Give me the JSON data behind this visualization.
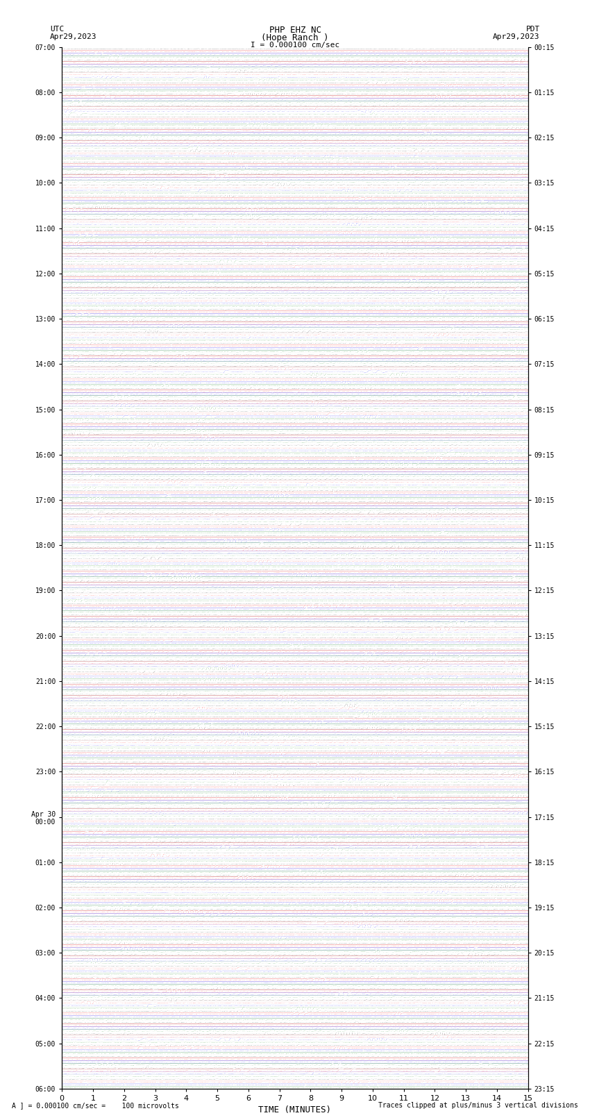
{
  "title_line1": "PHP EHZ NC",
  "title_line2": "(Hope Ranch )",
  "title_line3": "I = 0.000100 cm/sec",
  "left_label_line1": "UTC",
  "left_label_line2": "Apr29,2023",
  "right_label_line1": "PDT",
  "right_label_line2": "Apr29,2023",
  "xlabel": "TIME (MINUTES)",
  "footer_left": "A ] = 0.000100 cm/sec =    100 microvolts",
  "footer_right": "Traces clipped at plus/minus 3 vertical divisions",
  "utc_times": [
    "07:00",
    "",
    "",
    "",
    "08:00",
    "",
    "",
    "",
    "09:00",
    "",
    "",
    "",
    "10:00",
    "",
    "",
    "",
    "11:00",
    "",
    "",
    "",
    "12:00",
    "",
    "",
    "",
    "13:00",
    "",
    "",
    "",
    "14:00",
    "",
    "",
    "",
    "15:00",
    "",
    "",
    "",
    "16:00",
    "",
    "",
    "",
    "17:00",
    "",
    "",
    "",
    "18:00",
    "",
    "",
    "",
    "19:00",
    "",
    "",
    "",
    "20:00",
    "",
    "",
    "",
    "21:00",
    "",
    "",
    "",
    "22:00",
    "",
    "",
    "",
    "23:00",
    "",
    "",
    "",
    "Apr 30\n00:00",
    "",
    "",
    "",
    "01:00",
    "",
    "",
    "",
    "02:00",
    "",
    "",
    "",
    "03:00",
    "",
    "",
    "",
    "04:00",
    "",
    "",
    "",
    "05:00",
    "",
    "",
    "",
    "06:00"
  ],
  "pdt_times": [
    "00:15",
    "",
    "",
    "",
    "01:15",
    "",
    "",
    "",
    "02:15",
    "",
    "",
    "",
    "03:15",
    "",
    "",
    "",
    "04:15",
    "",
    "",
    "",
    "05:15",
    "",
    "",
    "",
    "06:15",
    "",
    "",
    "",
    "07:15",
    "",
    "",
    "",
    "08:15",
    "",
    "",
    "",
    "09:15",
    "",
    "",
    "",
    "10:15",
    "",
    "",
    "",
    "11:15",
    "",
    "",
    "",
    "12:15",
    "",
    "",
    "",
    "13:15",
    "",
    "",
    "",
    "14:15",
    "",
    "",
    "",
    "15:15",
    "",
    "",
    "",
    "16:15",
    "",
    "",
    "",
    "17:15",
    "",
    "",
    "",
    "18:15",
    "",
    "",
    "",
    "19:15",
    "",
    "",
    "",
    "20:15",
    "",
    "",
    "",
    "21:15",
    "",
    "",
    "",
    "22:15",
    "",
    "",
    "",
    "23:15"
  ],
  "n_rows": 92,
  "n_cols": 4,
  "colors": [
    "black",
    "red",
    "blue",
    "green"
  ],
  "bg_color": "white",
  "xlim": [
    0,
    15
  ],
  "seed": 42
}
